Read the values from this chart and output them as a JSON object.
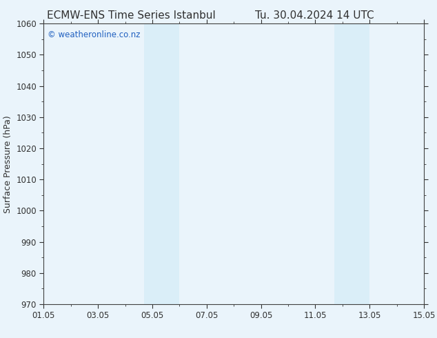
{
  "title_left": "ECMW-ENS Time Series Istanbul",
  "title_right": "Tu. 30.04.2024 14 UTC",
  "ylabel": "Surface Pressure (hPa)",
  "ylim": [
    970,
    1060
  ],
  "yticks": [
    970,
    980,
    990,
    1000,
    1010,
    1020,
    1030,
    1040,
    1050,
    1060
  ],
  "xlim_start": 0,
  "xlim_end": 14,
  "xtick_positions": [
    0,
    2,
    4,
    6,
    8,
    10,
    12,
    14
  ],
  "xtick_labels": [
    "01.05",
    "03.05",
    "05.05",
    "07.05",
    "09.05",
    "11.05",
    "13.05",
    "15.05"
  ],
  "shaded_regions": [
    {
      "xmin": 3.7,
      "xmax": 5.0
    },
    {
      "xmin": 10.7,
      "xmax": 12.0
    }
  ],
  "shaded_color": "#daeef8",
  "background_color": "#eaf4fb",
  "plot_bg_color": "#eaf4fb",
  "watermark_text": "© weatheronline.co.nz",
  "watermark_color": "#2060c0",
  "title_color": "#303030",
  "title_fontsize": 11,
  "axis_label_color": "#303030",
  "tick_color": "#303030",
  "border_color": "#404040",
  "minor_tick_count": 1,
  "figsize": [
    6.34,
    4.9
  ],
  "dpi": 100
}
